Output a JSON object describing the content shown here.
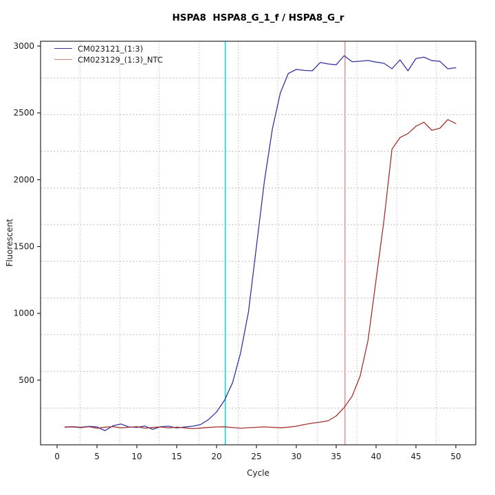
{
  "chart_data": {
    "type": "line",
    "title": "HSPA8  HSPA8_G_1_f / HSPA8_G_r",
    "xlabel": "Cycle",
    "ylabel": "Fluorescent",
    "xlim": [
      -2.07,
      52.5
    ],
    "ylim": [
      16,
      3036
    ],
    "xticks": [
      0,
      5,
      10,
      15,
      20,
      25,
      30,
      35,
      40,
      45,
      50
    ],
    "yticks": [
      500,
      1000,
      1500,
      2000,
      2500,
      3000
    ],
    "grid": {
      "nx": 11,
      "ny": 11,
      "color": "#b9b9b9",
      "style": "dotted"
    },
    "legend_position": "top-left",
    "axis_color": "#262626",
    "x": [
      1,
      2,
      3,
      4,
      5,
      6,
      7,
      8,
      9,
      10,
      11,
      12,
      13,
      14,
      15,
      16,
      17,
      18,
      19,
      20,
      21,
      22,
      23,
      24,
      25,
      26,
      27,
      28,
      29,
      30,
      31,
      32,
      33,
      34,
      35,
      36,
      37,
      38,
      39,
      40,
      41,
      42,
      43,
      44,
      45,
      46,
      47,
      48,
      49,
      50
    ],
    "series": [
      {
        "name": "CM023121_(1:3)",
        "color": "#3333a0",
        "legend_color": "#3333a0",
        "values": [
          150,
          152,
          147,
          154,
          150,
          122,
          158,
          172,
          150,
          146,
          156,
          132,
          152,
          155,
          142,
          150,
          155,
          168,
          205,
          262,
          350,
          480,
          700,
          1010,
          1500,
          1990,
          2380,
          2650,
          2795,
          2825,
          2818,
          2815,
          2877,
          2866,
          2860,
          2928,
          2882,
          2887,
          2892,
          2880,
          2871,
          2830,
          2897,
          2815,
          2907,
          2917,
          2891,
          2886,
          2830,
          2838
        ]
      },
      {
        "name": "CM023129_(1:3)_NTC",
        "color": "#a33030",
        "legend_color": "#c98080",
        "values": [
          148,
          150,
          144,
          152,
          140,
          148,
          152,
          143,
          147,
          152,
          140,
          146,
          150,
          142,
          148,
          143,
          137,
          141,
          146,
          150,
          151,
          145,
          140,
          144,
          147,
          150,
          147,
          143,
          148,
          155,
          168,
          178,
          186,
          196,
          232,
          295,
          380,
          530,
          800,
          1250,
          1700,
          2230,
          2315,
          2345,
          2400,
          2430,
          2370,
          2385,
          2450,
          2420
        ]
      }
    ],
    "threshold_lines": [
      {
        "axis": "x",
        "value": 21.1,
        "color": "#00e0e0",
        "name": "ct-line-sample"
      },
      {
        "axis": "x",
        "value": 36.1,
        "color": "#f09090",
        "name": "ct-line-ntc"
      }
    ]
  }
}
